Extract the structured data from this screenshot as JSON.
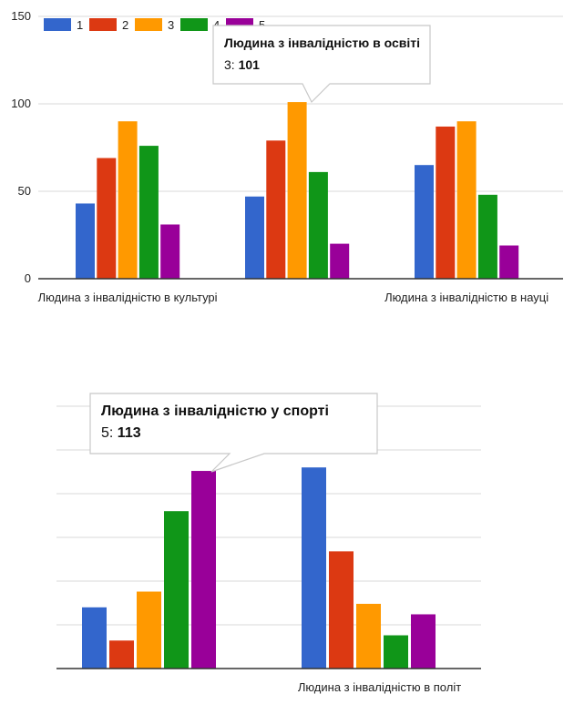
{
  "colors": {
    "1": "#3366cc",
    "2": "#dc3912",
    "3": "#ff9900",
    "4": "#109618",
    "5": "#990099",
    "grid": "#d9d9d9",
    "axis": "#333333",
    "text": "#222222",
    "tooltip_border": "#c8c8c8"
  },
  "chart_data": [
    {
      "type": "bar",
      "categories": [
        "Людина з інвалідністю в культурі",
        "Людина з інвалідністю в освіті",
        "Людина з інвалідністю в науці"
      ],
      "category_labels_shown": [
        "Людина з інвалідністю в культурі",
        "",
        "Людина з інвалідністю в науці"
      ],
      "series": [
        {
          "name": "1",
          "values": [
            43,
            47,
            65
          ]
        },
        {
          "name": "2",
          "values": [
            69,
            79,
            87
          ]
        },
        {
          "name": "3",
          "values": [
            90,
            101,
            90
          ]
        },
        {
          "name": "4",
          "values": [
            76,
            61,
            48
          ]
        },
        {
          "name": "5",
          "values": [
            31,
            20,
            19
          ]
        }
      ],
      "ylim": [
        0,
        150
      ],
      "yticks": [
        "0",
        "50",
        "100",
        "150"
      ],
      "grid": true,
      "legend": "top-left",
      "legend_labels": [
        "1",
        "2",
        "3",
        "4",
        "5"
      ],
      "tooltip": {
        "title": "Людина з інвалідністю в освіті",
        "series_label": "3",
        "value": "101"
      }
    },
    {
      "type": "bar",
      "categories": [
        "Людина з інвалідністю у спорті",
        "Людина з інвалідністю в політ"
      ],
      "category_labels_shown": [
        "",
        "Людина з інвалідністю в політ"
      ],
      "series": [
        {
          "name": "1",
          "values": [
            35,
            115
          ]
        },
        {
          "name": "2",
          "values": [
            16,
            67
          ]
        },
        {
          "name": "3",
          "values": [
            44,
            37
          ]
        },
        {
          "name": "4",
          "values": [
            90,
            19
          ]
        },
        {
          "name": "5",
          "values": [
            113,
            31
          ]
        }
      ],
      "ylim": [
        0,
        150
      ],
      "grid": true,
      "tooltip": {
        "title": "Людина з інвалідністю у спорті",
        "series_label": "5",
        "value": "113"
      }
    }
  ]
}
